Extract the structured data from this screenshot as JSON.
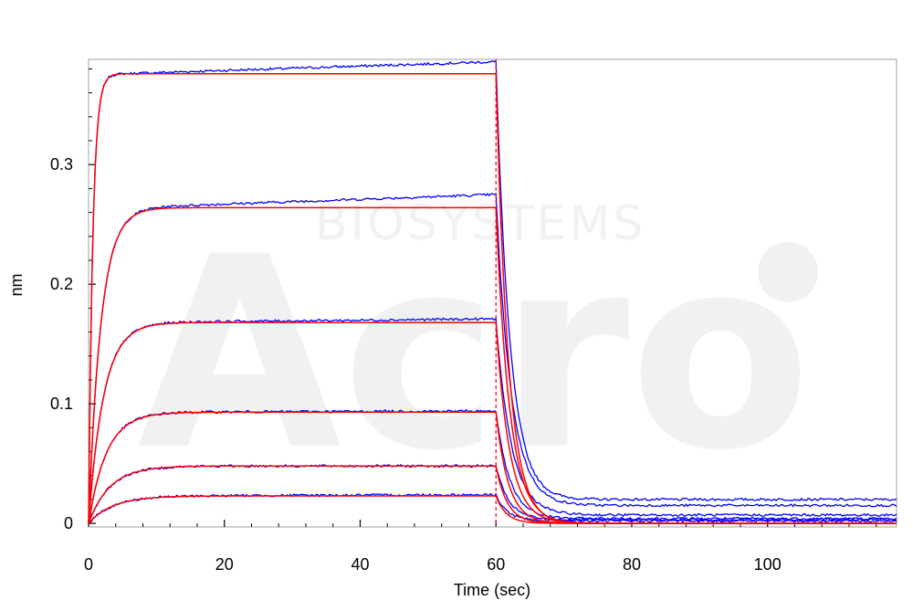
{
  "chart_data": {
    "type": "line",
    "title": "",
    "xlabel": "Time (sec)",
    "ylabel": "nm",
    "xlim": [
      0,
      119
    ],
    "ylim": [
      -0.003,
      0.388
    ],
    "x_ticks": [
      0,
      20,
      40,
      60,
      80,
      100
    ],
    "y_ticks": [
      0,
      0.1,
      0.2,
      0.3
    ],
    "x_tick_labels": [
      "0",
      "20",
      "40",
      "60",
      "80",
      "100"
    ],
    "y_tick_labels": [
      "0",
      "0.1",
      "0.2",
      "0.3"
    ],
    "grid": false,
    "legend": "none",
    "association_end": 60,
    "series_colors": {
      "measured": "#0000ff",
      "fit": "#ff0000",
      "marker": "#ff0000"
    },
    "curves": [
      {
        "rmax": 0.376,
        "ka_rate": 1.6,
        "end_value": 0.386,
        "residual": 0.02,
        "kd_rate": 0.55
      },
      {
        "rmax": 0.264,
        "ka_rate": 0.55,
        "end_value": 0.275,
        "residual": 0.015,
        "kd_rate": 0.5
      },
      {
        "rmax": 0.168,
        "ka_rate": 0.45,
        "end_value": 0.171,
        "residual": 0.007,
        "kd_rate": 0.5
      },
      {
        "rmax": 0.093,
        "ka_rate": 0.38,
        "end_value": 0.094,
        "residual": 0.004,
        "kd_rate": 0.55
      },
      {
        "rmax": 0.048,
        "ka_rate": 0.32,
        "end_value": 0.048,
        "residual": 0.003,
        "kd_rate": 0.6
      },
      {
        "rmax": 0.023,
        "ka_rate": 0.28,
        "end_value": 0.024,
        "residual": 0.002,
        "kd_rate": 0.65
      }
    ]
  },
  "watermark": {
    "logo_text": "Acro",
    "sub_text": "BIOSYSTEMS"
  }
}
